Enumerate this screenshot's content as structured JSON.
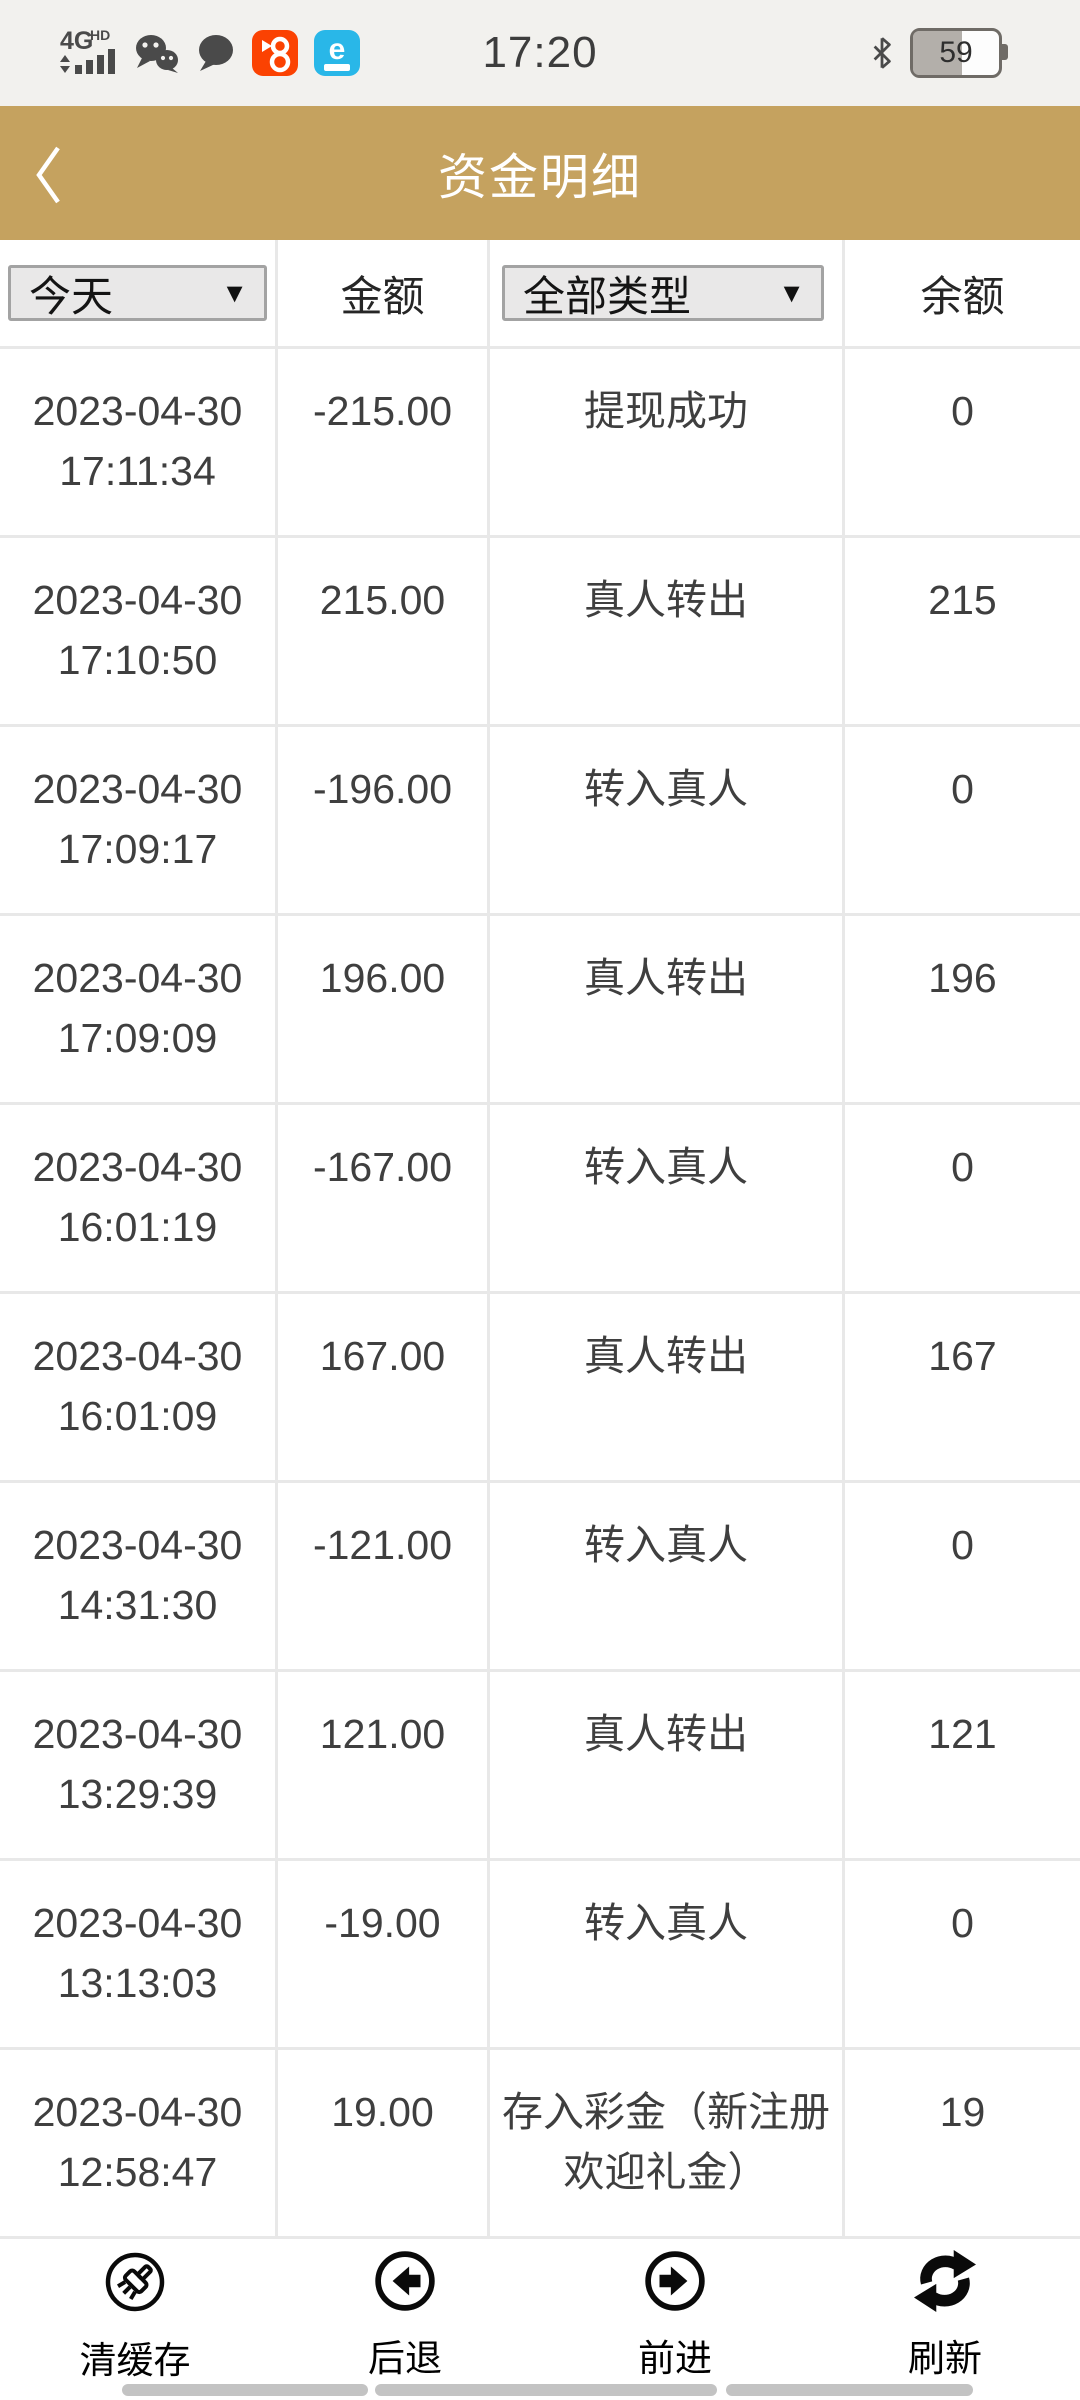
{
  "status_bar": {
    "network": "4G",
    "network_sub": "HD",
    "time": "17:20",
    "battery_percent": "59",
    "app_icons": [
      "wechat-icon",
      "message-bubble-icon",
      "kuaishou-icon",
      "e-app-icon"
    ],
    "right_icons": [
      "bluetooth-icon",
      "battery-indicator"
    ]
  },
  "header": {
    "title": "资金明细",
    "back_icon": "chevron-left-icon"
  },
  "filters": {
    "date_filter_value": "今天",
    "type_filter_value": "全部类型",
    "caret": "▼",
    "amount_label": "金额",
    "balance_label": "余额"
  },
  "table": {
    "rows": [
      {
        "date": "2023-04-30",
        "time": "17:11:34",
        "amount": "-215.00",
        "type": "提现成功",
        "balance": "0"
      },
      {
        "date": "2023-04-30",
        "time": "17:10:50",
        "amount": "215.00",
        "type": "真人转出",
        "balance": "215"
      },
      {
        "date": "2023-04-30",
        "time": "17:09:17",
        "amount": "-196.00",
        "type": "转入真人",
        "balance": "0"
      },
      {
        "date": "2023-04-30",
        "time": "17:09:09",
        "amount": "196.00",
        "type": "真人转出",
        "balance": "196"
      },
      {
        "date": "2023-04-30",
        "time": "16:01:19",
        "amount": "-167.00",
        "type": "转入真人",
        "balance": "0"
      },
      {
        "date": "2023-04-30",
        "time": "16:01:09",
        "amount": "167.00",
        "type": "真人转出",
        "balance": "167"
      },
      {
        "date": "2023-04-30",
        "time": "14:31:30",
        "amount": "-121.00",
        "type": "转入真人",
        "balance": "0"
      },
      {
        "date": "2023-04-30",
        "time": "13:29:39",
        "amount": "121.00",
        "type": "真人转出",
        "balance": "121"
      },
      {
        "date": "2023-04-30",
        "time": "13:13:03",
        "amount": "-19.00",
        "type": "转入真人",
        "balance": "0"
      },
      {
        "date": "2023-04-30",
        "time": "12:58:47",
        "amount": "19.00",
        "type": "存入彩金（新注册欢迎礼金）",
        "balance": "19"
      }
    ]
  },
  "bottom_nav": {
    "items": [
      {
        "label": "清缓存",
        "icon": "clear-cache-broom-icon"
      },
      {
        "label": "后退",
        "icon": "back-circle-arrow-icon"
      },
      {
        "label": "前进",
        "icon": "forward-circle-arrow-icon"
      },
      {
        "label": "刷新",
        "icon": "refresh-icon"
      }
    ]
  },
  "colors": {
    "header_gold": "#c5a25f",
    "statusbar_bg": "#f2f1ee",
    "divider": "#e8e8e8",
    "select_bg": "#e9e8e8",
    "select_border": "#a3a3a3",
    "kuaishou_orange": "#fb4202",
    "e_app_cyan": "#29b7e8",
    "text": "#3f3f3f"
  }
}
